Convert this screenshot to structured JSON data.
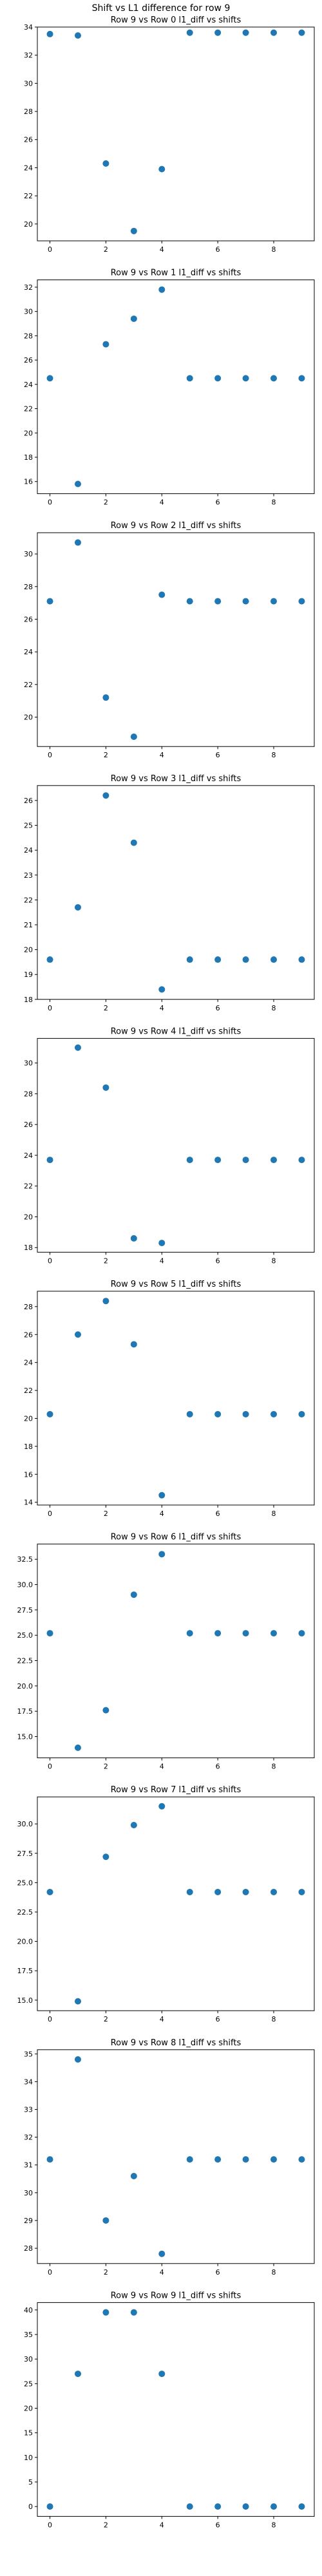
{
  "figure": {
    "suptitle": "Shift vs L1 difference for row 9",
    "marker_color": "#1f77b4"
  },
  "chart_data": [
    {
      "type": "scatter",
      "title": "Row 9 vs Row 0 l1_diff vs shifts",
      "x": [
        0,
        1,
        2,
        3,
        4,
        5,
        6,
        7,
        8,
        9
      ],
      "y": [
        33.5,
        33.4,
        24.3,
        19.5,
        23.9,
        33.6,
        33.6,
        33.6,
        33.6,
        33.6
      ],
      "xlim": [
        -0.45,
        9.45
      ],
      "ylim": [
        18.8,
        34.0
      ],
      "xticks": [
        0,
        2,
        4,
        6,
        8
      ],
      "yticks": [
        20,
        22,
        24,
        26,
        28,
        30,
        32,
        34
      ],
      "grid": false
    },
    {
      "type": "scatter",
      "title": "Row 9 vs Row 1 l1_diff vs shifts",
      "x": [
        0,
        1,
        2,
        3,
        4,
        5,
        6,
        7,
        8,
        9
      ],
      "y": [
        24.5,
        15.8,
        27.3,
        29.4,
        31.8,
        24.5,
        24.5,
        24.5,
        24.5,
        24.5
      ],
      "xlim": [
        -0.45,
        9.45
      ],
      "ylim": [
        15.0,
        32.6
      ],
      "xticks": [
        0,
        2,
        4,
        6,
        8
      ],
      "yticks": [
        16,
        18,
        20,
        22,
        24,
        26,
        28,
        30,
        32
      ],
      "grid": false
    },
    {
      "type": "scatter",
      "title": "Row 9 vs Row 2 l1_diff vs shifts",
      "x": [
        0,
        1,
        2,
        3,
        4,
        5,
        6,
        7,
        8,
        9
      ],
      "y": [
        27.1,
        30.7,
        21.2,
        18.8,
        27.5,
        27.1,
        27.1,
        27.1,
        27.1,
        27.1
      ],
      "xlim": [
        -0.45,
        9.45
      ],
      "ylim": [
        18.2,
        31.3
      ],
      "xticks": [
        0,
        2,
        4,
        6,
        8
      ],
      "yticks": [
        20,
        22,
        24,
        26,
        28,
        30
      ],
      "grid": false
    },
    {
      "type": "scatter",
      "title": "Row 9 vs Row 3 l1_diff vs shifts",
      "x": [
        0,
        1,
        2,
        3,
        4,
        5,
        6,
        7,
        8,
        9
      ],
      "y": [
        19.6,
        21.7,
        26.2,
        24.3,
        18.4,
        19.6,
        19.6,
        19.6,
        19.6,
        19.6
      ],
      "xlim": [
        -0.45,
        9.45
      ],
      "ylim": [
        18.0,
        26.6
      ],
      "xticks": [
        0,
        2,
        4,
        6,
        8
      ],
      "yticks": [
        18,
        19,
        20,
        21,
        22,
        23,
        24,
        25,
        26
      ],
      "grid": false
    },
    {
      "type": "scatter",
      "title": "Row 9 vs Row 4 l1_diff vs shifts",
      "x": [
        0,
        1,
        2,
        3,
        4,
        5,
        6,
        7,
        8,
        9
      ],
      "y": [
        23.7,
        31.0,
        28.4,
        18.6,
        18.3,
        23.7,
        23.7,
        23.7,
        23.7,
        23.7
      ],
      "xlim": [
        -0.45,
        9.45
      ],
      "ylim": [
        17.7,
        31.6
      ],
      "xticks": [
        0,
        2,
        4,
        6,
        8
      ],
      "yticks": [
        18,
        20,
        22,
        24,
        26,
        28,
        30
      ],
      "grid": false
    },
    {
      "type": "scatter",
      "title": "Row 9 vs Row 5 l1_diff vs shifts",
      "x": [
        0,
        1,
        2,
        3,
        4,
        5,
        6,
        7,
        8,
        9
      ],
      "y": [
        20.3,
        26.0,
        28.4,
        25.3,
        14.5,
        20.3,
        20.3,
        20.3,
        20.3,
        20.3
      ],
      "xlim": [
        -0.45,
        9.45
      ],
      "ylim": [
        13.8,
        29.1
      ],
      "xticks": [
        0,
        2,
        4,
        6,
        8
      ],
      "yticks": [
        14,
        16,
        18,
        20,
        22,
        24,
        26,
        28
      ],
      "grid": false
    },
    {
      "type": "scatter",
      "title": "Row 9 vs Row 6 l1_diff vs shifts",
      "x": [
        0,
        1,
        2,
        3,
        4,
        5,
        6,
        7,
        8,
        9
      ],
      "y": [
        25.2,
        13.9,
        17.6,
        29.0,
        33.0,
        25.2,
        25.2,
        25.2,
        25.2,
        25.2
      ],
      "xlim": [
        -0.45,
        9.45
      ],
      "ylim": [
        12.9,
        34.0
      ],
      "xticks": [
        0,
        2,
        4,
        6,
        8
      ],
      "yticks": [
        15.0,
        17.5,
        20.0,
        22.5,
        25.0,
        27.5,
        30.0,
        32.5
      ],
      "grid": false
    },
    {
      "type": "scatter",
      "title": "Row 9 vs Row 7 l1_diff vs shifts",
      "x": [
        0,
        1,
        2,
        3,
        4,
        5,
        6,
        7,
        8,
        9
      ],
      "y": [
        24.2,
        14.9,
        27.2,
        29.9,
        31.5,
        24.2,
        24.2,
        24.2,
        24.2,
        24.2
      ],
      "xlim": [
        -0.45,
        9.45
      ],
      "ylim": [
        14.1,
        32.3
      ],
      "xticks": [
        0,
        2,
        4,
        6,
        8
      ],
      "yticks": [
        15.0,
        17.5,
        20.0,
        22.5,
        25.0,
        27.5,
        30.0
      ],
      "grid": false
    },
    {
      "type": "scatter",
      "title": "Row 9 vs Row 8 l1_diff vs shifts",
      "x": [
        0,
        1,
        2,
        3,
        4,
        5,
        6,
        7,
        8,
        9
      ],
      "y": [
        31.2,
        34.8,
        29.0,
        30.6,
        27.8,
        31.2,
        31.2,
        31.2,
        31.2,
        31.2
      ],
      "xlim": [
        -0.45,
        9.45
      ],
      "ylim": [
        27.45,
        35.15
      ],
      "xticks": [
        0,
        2,
        4,
        6,
        8
      ],
      "yticks": [
        28,
        29,
        30,
        31,
        32,
        33,
        34,
        35
      ],
      "grid": false
    },
    {
      "type": "scatter",
      "title": "Row 9 vs Row 9 l1_diff vs shifts",
      "x": [
        0,
        1,
        2,
        3,
        4,
        5,
        6,
        7,
        8,
        9
      ],
      "y": [
        0,
        27.0,
        39.5,
        39.5,
        27.0,
        0,
        0,
        0,
        0,
        0
      ],
      "xlim": [
        -0.45,
        9.45
      ],
      "ylim": [
        -2.0,
        41.5
      ],
      "xticks": [
        0,
        2,
        4,
        6,
        8
      ],
      "yticks": [
        0,
        5,
        10,
        15,
        20,
        25,
        30,
        35,
        40
      ],
      "grid": false
    }
  ]
}
